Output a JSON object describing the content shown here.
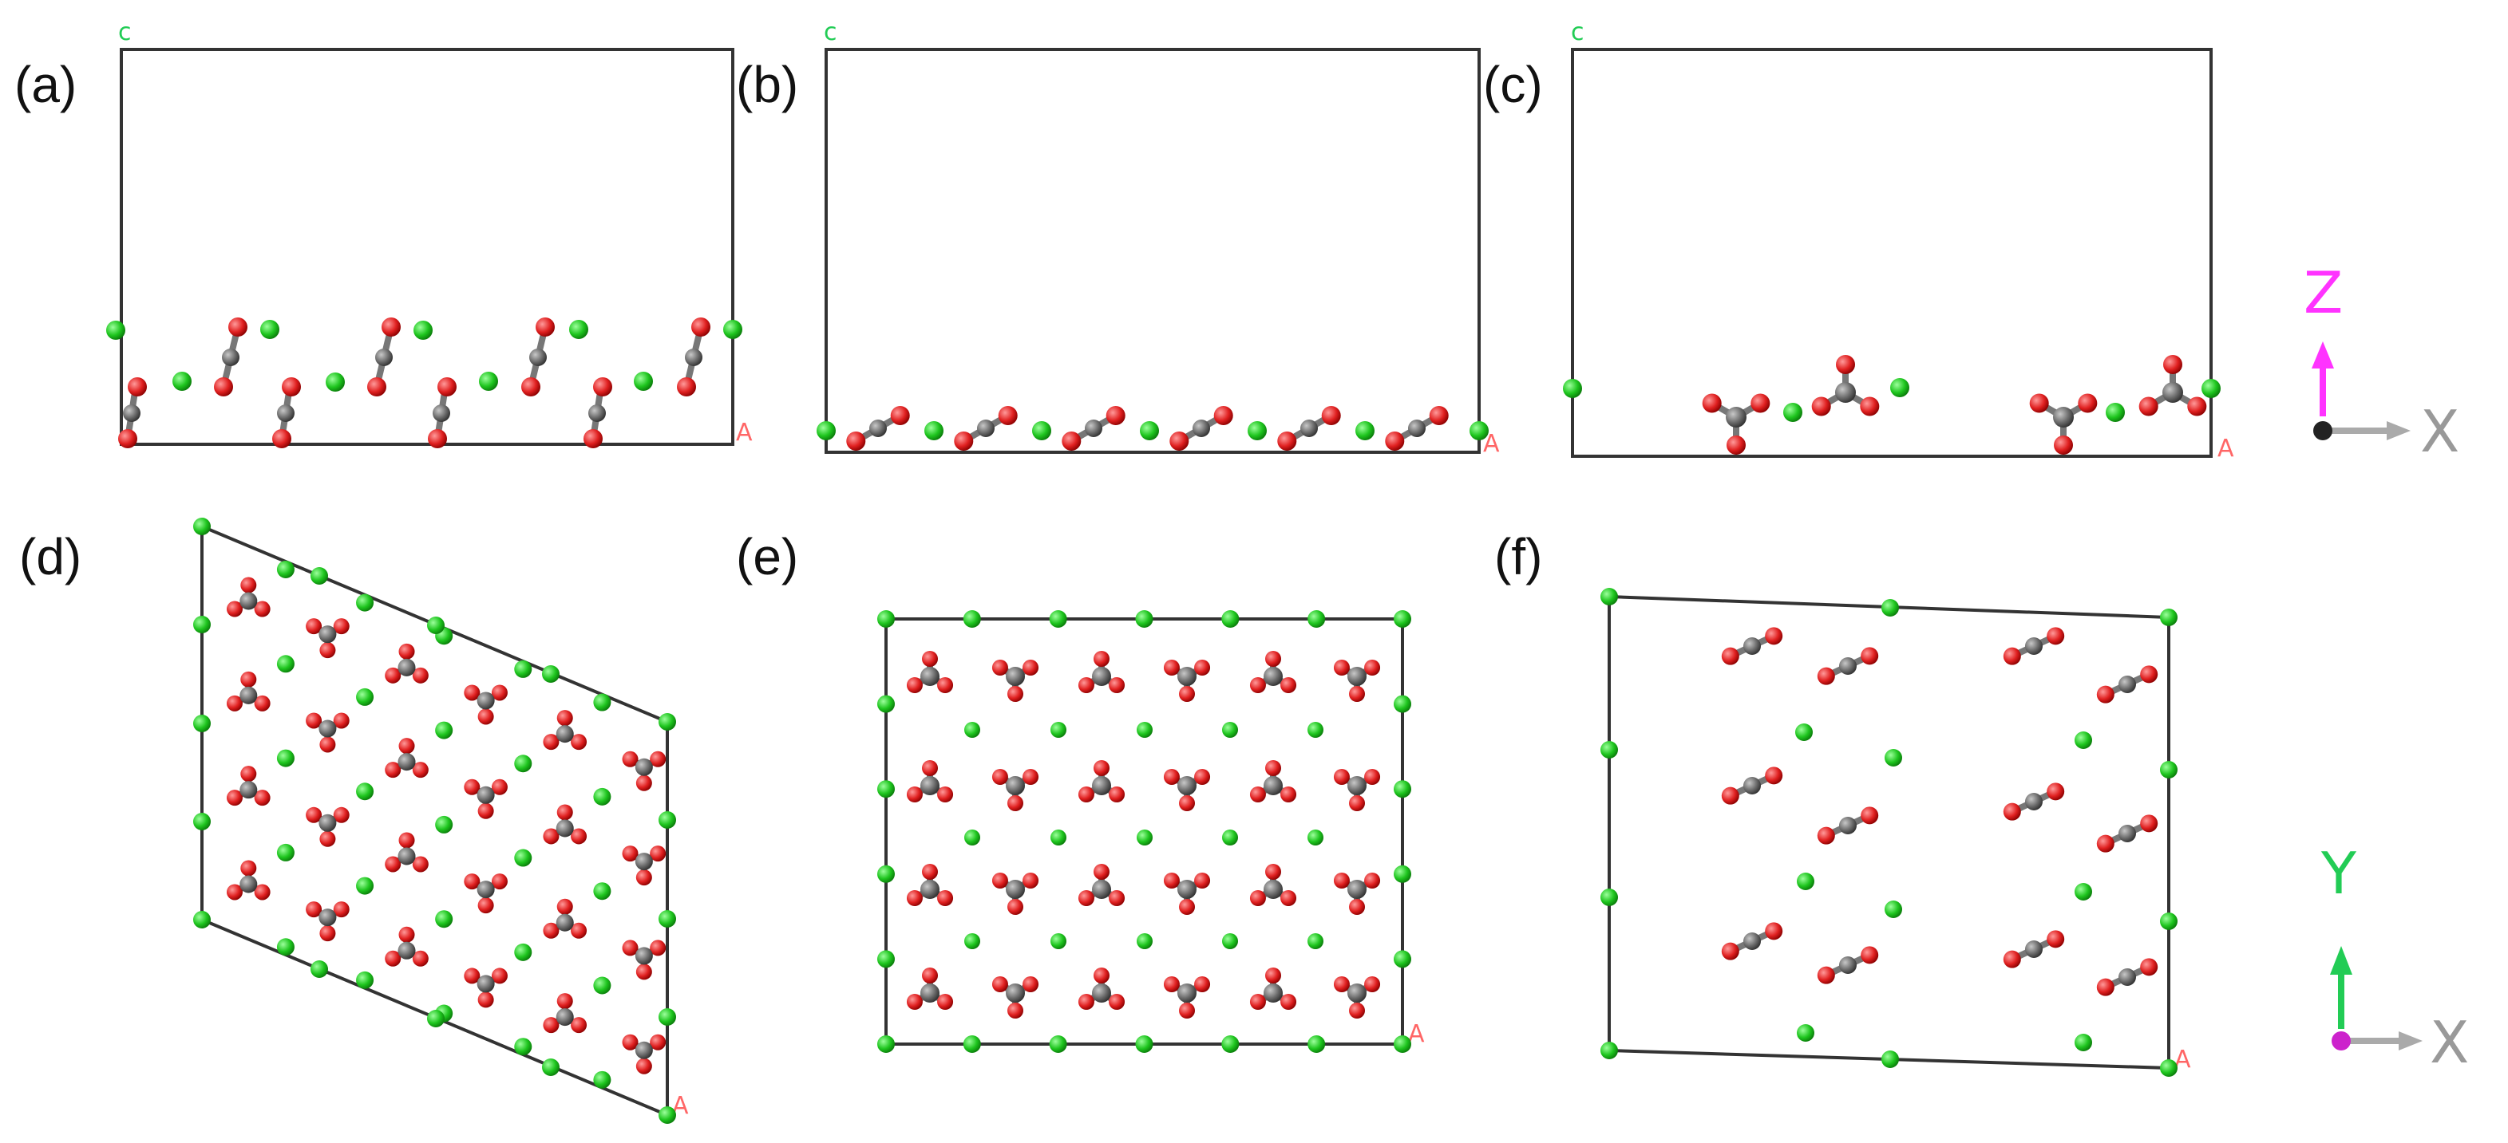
{
  "panels": [
    {
      "id": "a",
      "label": "(a)",
      "cell_labels": {
        "c": "c",
        "a": "A"
      }
    },
    {
      "id": "b",
      "label": "(b)",
      "cell_labels": {
        "c": "c",
        "a": "A"
      }
    },
    {
      "id": "c",
      "label": "(c)",
      "cell_labels": {
        "c": "c",
        "a": "A"
      }
    },
    {
      "id": "d",
      "label": "(d)",
      "cell_labels": {
        "a": "A"
      }
    },
    {
      "id": "e",
      "label": "(e)",
      "cell_labels": {
        "a": "A"
      }
    },
    {
      "id": "f",
      "label": "(f)",
      "cell_labels": {
        "a": "A"
      }
    }
  ],
  "axes": {
    "side_view": {
      "vertical": "Z",
      "horizontal": "X"
    },
    "top_view": {
      "vertical": "Y",
      "horizontal": "X"
    }
  },
  "colors": {
    "green_atom": "#1ec51e",
    "red_atom": "#e02020",
    "grey_atom": "#6a6a6a",
    "cell_line": "#333333",
    "cell_label_c": "#22cc55",
    "cell_label_a": "#ff6666",
    "axis_z": "#ff33ff",
    "axis_y": "#22cc55",
    "axis_x": "#999999"
  }
}
